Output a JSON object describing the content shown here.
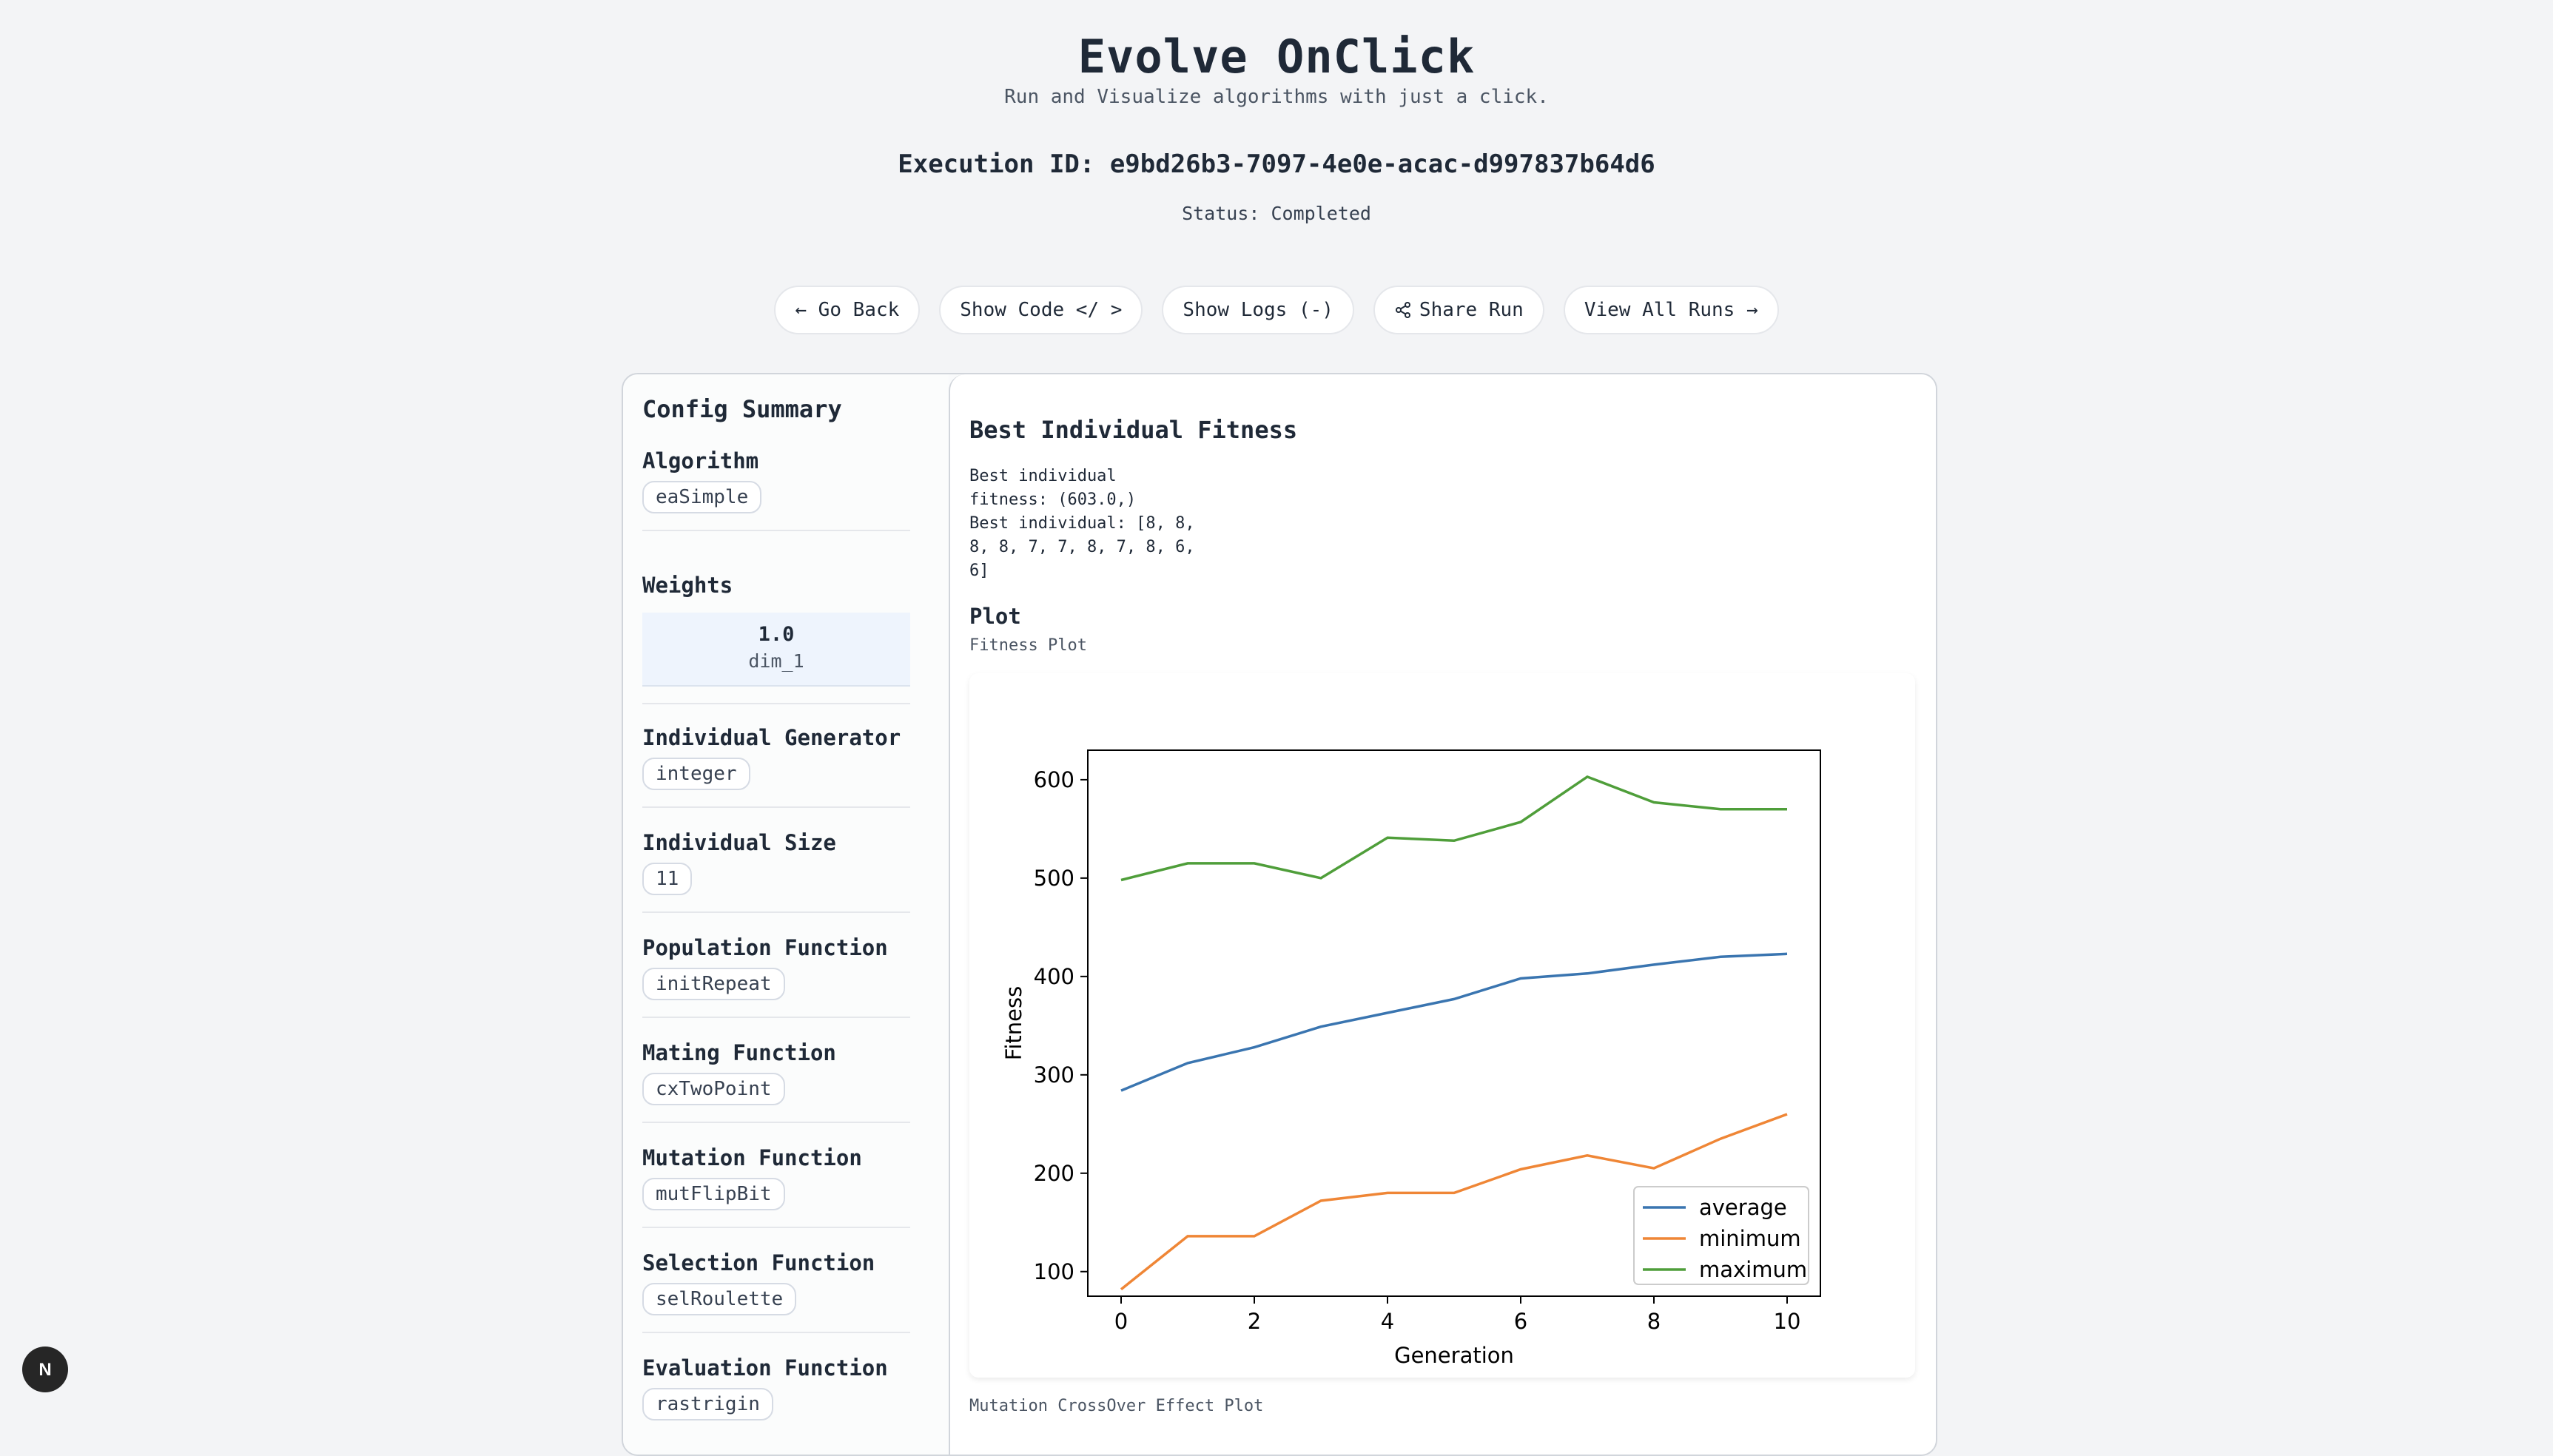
{
  "header": {
    "title": "Evolve OnClick",
    "subtitle": "Run and Visualize algorithms with just a click."
  },
  "execution": {
    "id_text": "Execution ID: e9bd26b3-7097-4e0e-acac-d997837b64d6",
    "status_text": "Status: Completed"
  },
  "toolbar": {
    "go_back": "← Go Back",
    "show_code": "Show Code </ >",
    "show_logs": "Show Logs (-)",
    "share_run": "Share Run",
    "view_all_runs": "View All Runs →"
  },
  "sidebar": {
    "title": "Config Summary",
    "algorithm": {
      "label": "Algorithm",
      "value": "eaSimple"
    },
    "weights": {
      "label": "Weights",
      "value": "1.0",
      "dim": "dim_1"
    },
    "individual_generator": {
      "label": "Individual Generator",
      "value": "integer"
    },
    "individual_size": {
      "label": "Individual Size",
      "value": "11"
    },
    "population_function": {
      "label": "Population Function",
      "value": "initRepeat"
    },
    "mating_function": {
      "label": "Mating Function",
      "value": "cxTwoPoint"
    },
    "mutation_function": {
      "label": "Mutation Function",
      "value": "mutFlipBit"
    },
    "selection_function": {
      "label": "Selection Function",
      "value": "selRoulette"
    },
    "evaluation_function": {
      "label": "Evaluation Function",
      "value": "rastrigin"
    }
  },
  "main": {
    "title": "Best Individual Fitness",
    "best_text": "Best individual\nfitness: (603.0,)\nBest individual: [8, 8,\n8, 8, 7, 7, 8, 7, 8, 6,\n6]",
    "plot_label": "Plot",
    "plot_sub": "Fitness Plot",
    "next_plot_label": "Mutation CrossOver Effect Plot"
  },
  "colors": {
    "average": "#3a75b0",
    "minimum": "#ef8636",
    "maximum": "#4f9e3a"
  },
  "chart_data": {
    "type": "line",
    "x": [
      0,
      1,
      2,
      3,
      4,
      5,
      6,
      7,
      8,
      9,
      10
    ],
    "series": [
      {
        "name": "average",
        "values": [
          284,
          312,
          328,
          349,
          363,
          377,
          398,
          403,
          412,
          420,
          423
        ]
      },
      {
        "name": "minimum",
        "values": [
          82,
          136,
          136,
          172,
          180,
          180,
          204,
          218,
          205,
          235,
          260
        ]
      },
      {
        "name": "maximum",
        "values": [
          498,
          515,
          515,
          500,
          541,
          538,
          557,
          603,
          577,
          570,
          570
        ]
      }
    ],
    "title": "",
    "xlabel": "Generation",
    "ylabel": "Fitness",
    "xlim": [
      -0.5,
      10.5
    ],
    "ylim": [
      75,
      630
    ],
    "xticks": [
      0,
      2,
      4,
      6,
      8,
      10
    ],
    "yticks": [
      100,
      200,
      300,
      400,
      500,
      600
    ],
    "legend": "lower-right",
    "grid": false
  }
}
